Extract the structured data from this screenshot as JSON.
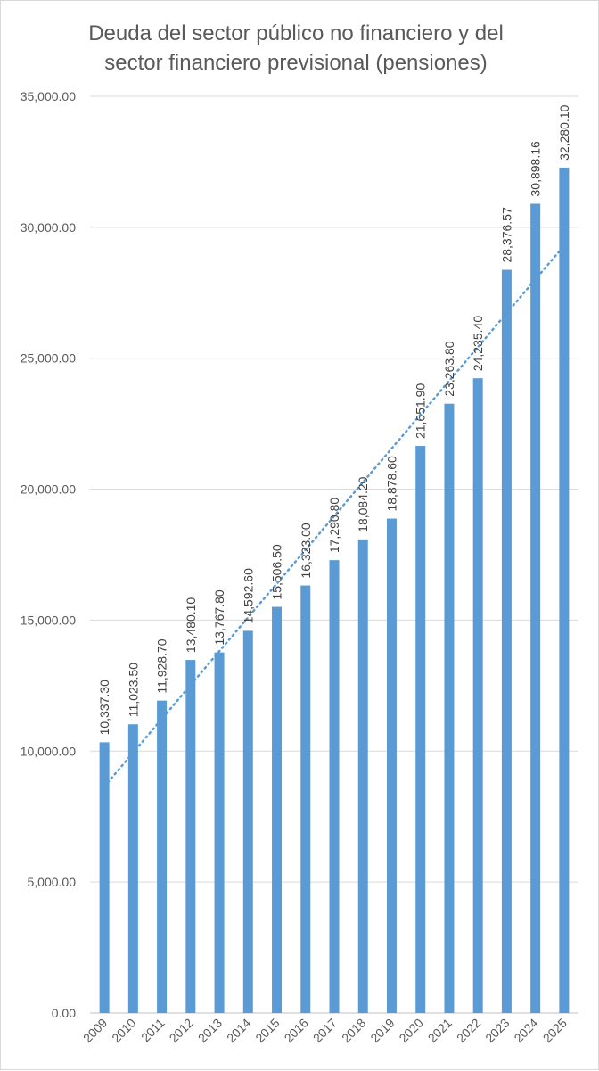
{
  "chart_data": {
    "type": "bar",
    "title_lines": [
      "Deuda del sector público no financiero y del",
      "sector financiero previsional (pensiones)"
    ],
    "categories": [
      "2009",
      "2010",
      "2011",
      "2012",
      "2013",
      "2014",
      "2015",
      "2016",
      "2017",
      "2018",
      "2019",
      "2020",
      "2021",
      "2022",
      "2023",
      "2024",
      "2025"
    ],
    "values": [
      10337.3,
      11023.5,
      11928.7,
      13480.1,
      13767.8,
      14592.6,
      15506.5,
      16323.0,
      17290.8,
      18084.2,
      18878.6,
      21651.9,
      23263.8,
      24235.4,
      28376.57,
      30898.16,
      32280.1
    ],
    "data_labels": [
      "10,337.30",
      "11,023.50",
      "11,928.70",
      "13,480.10",
      "13,767.80",
      "14,592.60",
      "15,506.50",
      "16,323.00",
      "17,290.80",
      "18,084.20",
      "18,878.60",
      "21,651.90",
      "23,263.80",
      "24,235.40",
      "28,376.57",
      "30,898.16",
      "32,280.10"
    ],
    "y_ticks": [
      0,
      5000,
      10000,
      15000,
      20000,
      25000,
      30000,
      35000
    ],
    "y_tick_labels": [
      "0.00",
      "5,000.00",
      "10,000.00",
      "15,000.00",
      "20,000.00",
      "25,000.00",
      "30,000.00",
      "35,000.00"
    ],
    "ylim": [
      0,
      35000
    ],
    "xlabel": "",
    "ylabel": "",
    "grid": true,
    "legend": "none",
    "trendline": {
      "type": "linear",
      "style": "dotted",
      "start": 8650,
      "end": 29300
    },
    "colors": {
      "bar": "#5b9bd5",
      "trend": "#5b9bd5",
      "text": "#595959"
    }
  }
}
